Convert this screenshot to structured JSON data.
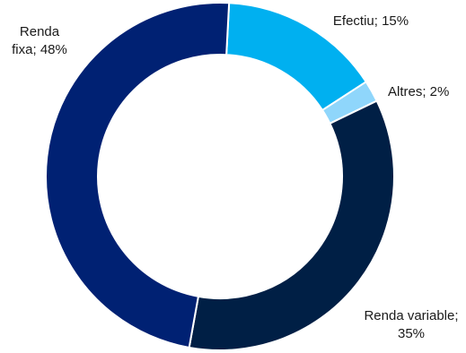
{
  "chart_data": {
    "type": "pie",
    "variant": "donut",
    "title": "",
    "legend": "none",
    "slices": [
      {
        "name": "Efectiu",
        "value": 15,
        "color": "#00b0f0",
        "label_lines": [
          "Efectiu; 15%"
        ]
      },
      {
        "name": "Altres",
        "value": 2,
        "color": "#8fd6fb",
        "label_lines": [
          "Altres; 2%"
        ]
      },
      {
        "name": "Renda variable",
        "value": 35,
        "color": "#001f45",
        "label_lines": [
          "Renda variable;",
          "35%"
        ]
      },
      {
        "name": "Renda fixa",
        "value": 48,
        "color": "#002173",
        "label_lines": [
          "Renda",
          "fixa; 48%"
        ]
      }
    ]
  }
}
